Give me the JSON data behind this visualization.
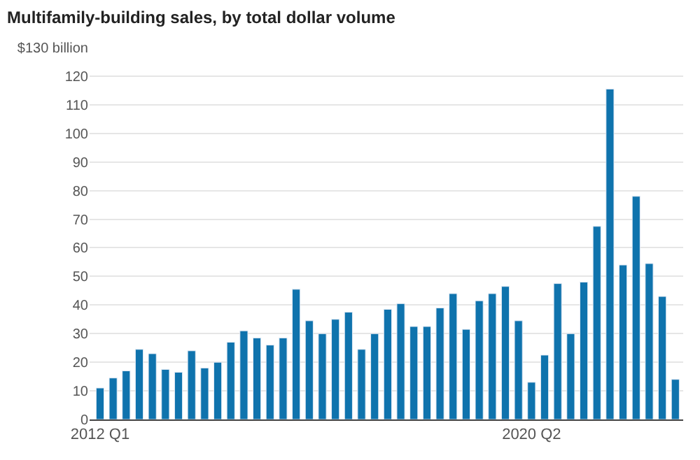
{
  "chart_data": {
    "type": "bar",
    "title": "Multifamily-building sales, by total dollar volume",
    "categories": [
      "2012 Q1",
      null,
      null,
      null,
      null,
      null,
      null,
      null,
      null,
      null,
      null,
      null,
      null,
      null,
      null,
      null,
      null,
      null,
      null,
      null,
      null,
      null,
      null,
      null,
      null,
      null,
      null,
      null,
      null,
      null,
      null,
      null,
      null,
      "2020 Q2",
      null,
      null,
      null,
      null,
      null,
      null,
      null,
      null,
      null,
      null,
      null
    ],
    "values": [
      11,
      14.5,
      17,
      24.5,
      23,
      17.5,
      16.5,
      24,
      18,
      20,
      27,
      31,
      28.5,
      26,
      28.5,
      45.5,
      34.5,
      30,
      35,
      37.5,
      24.5,
      30,
      38.5,
      40.5,
      32.5,
      32.5,
      39,
      44,
      31.5,
      41.5,
      44,
      46.5,
      34.5,
      13,
      22.5,
      47.5,
      30,
      48,
      67.5,
      115.5,
      54,
      78,
      54.5,
      43,
      14
    ],
    "color": "#0f73ad",
    "ylim": [
      0,
      130
    ],
    "yticks": [
      0,
      10,
      20,
      30,
      40,
      50,
      60,
      70,
      80,
      90,
      100,
      110,
      120,
      {
        "value": 130,
        "label": "$130 billion"
      }
    ],
    "grid": "y"
  }
}
